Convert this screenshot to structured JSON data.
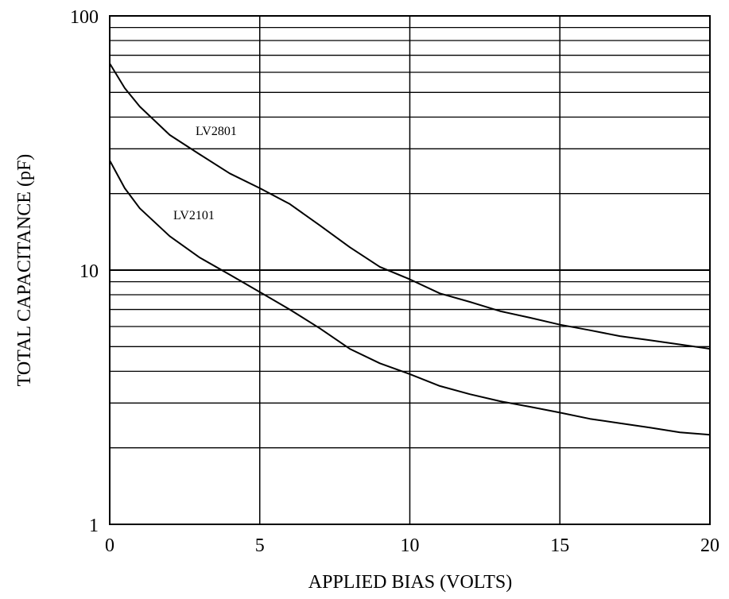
{
  "chart_data": {
    "type": "line",
    "title": "",
    "xlabel": "APPLIED BIAS (VOLTS)",
    "ylabel": "TOTAL CAPACITANCE (pF)",
    "xlim": [
      0,
      20
    ],
    "ylim": [
      1,
      100
    ],
    "yscale": "log",
    "grid": true,
    "x_ticks": [
      "0",
      "5",
      "10",
      "15",
      "20"
    ],
    "y_ticks": [
      "1",
      "10",
      "100"
    ],
    "series": [
      {
        "name": "LV2801",
        "x": [
          0,
          0.5,
          1,
          2,
          3,
          4,
          5,
          6,
          7,
          8,
          9,
          10,
          11,
          12,
          13,
          14,
          15,
          16,
          17,
          18,
          19,
          20
        ],
        "y": [
          65,
          52,
          44,
          34,
          28.5,
          24,
          21,
          18.2,
          15,
          12.3,
          10.3,
          9.2,
          8.1,
          7.5,
          6.9,
          6.5,
          6.1,
          5.8,
          5.5,
          5.3,
          5.1,
          4.9
        ]
      },
      {
        "name": "LV2101",
        "x": [
          0,
          0.5,
          1,
          2,
          3,
          4,
          5,
          6,
          7,
          8,
          9,
          10,
          11,
          12,
          13,
          14,
          15,
          16,
          17,
          18,
          19,
          20
        ],
        "y": [
          27,
          21,
          17.5,
          13.6,
          11.2,
          9.6,
          8.2,
          7,
          5.9,
          4.9,
          4.3,
          3.9,
          3.5,
          3.25,
          3.05,
          2.9,
          2.75,
          2.6,
          2.5,
          2.4,
          2.3,
          2.25
        ]
      }
    ]
  }
}
